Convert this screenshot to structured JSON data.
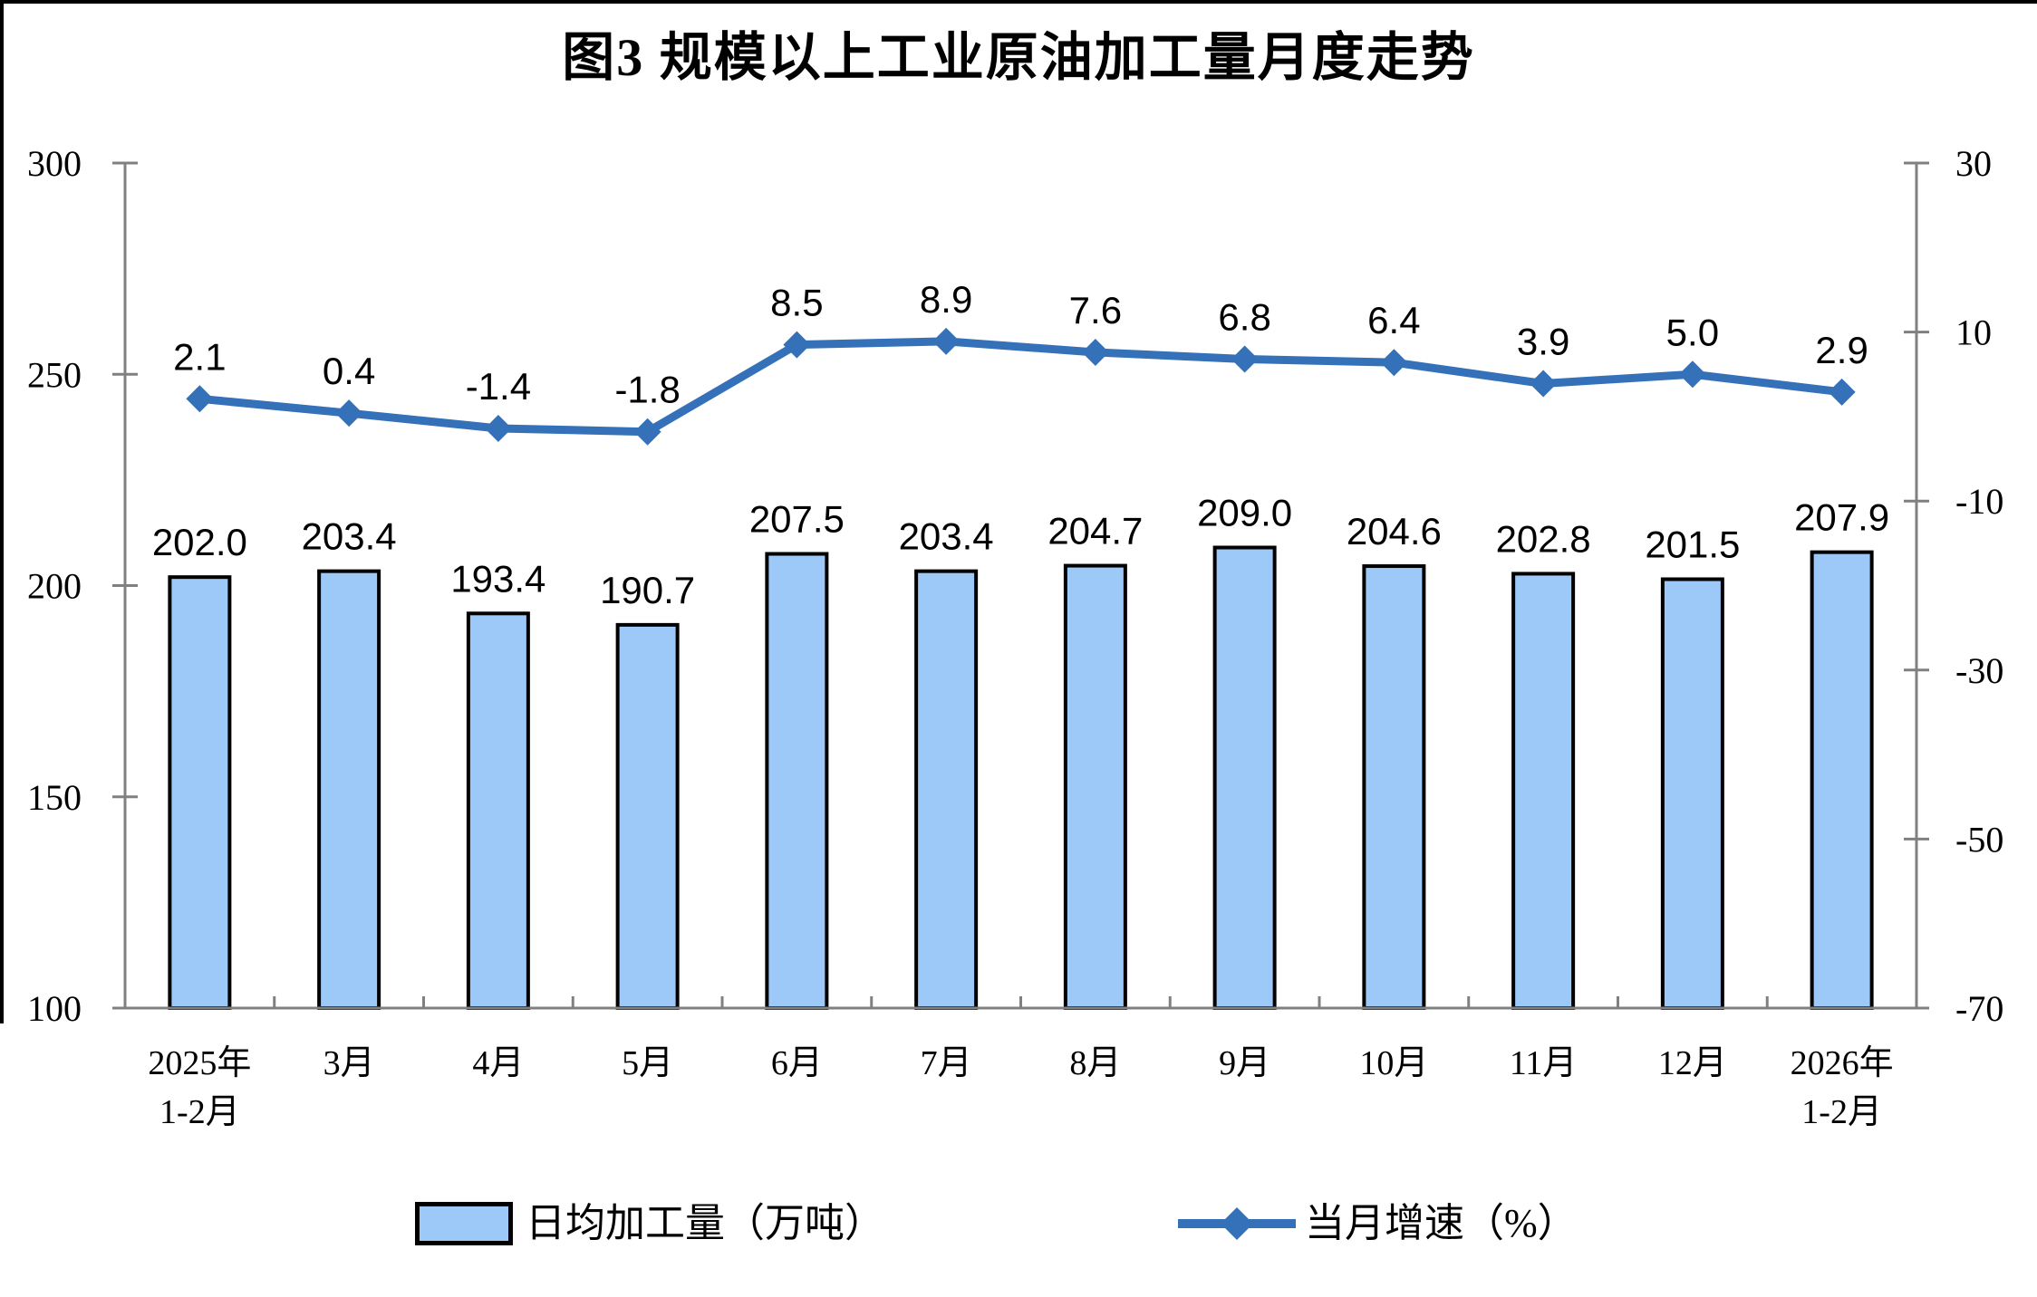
{
  "chart_data": {
    "type": "bar+line",
    "title": "图3 规模以上工业原油加工量月度走势",
    "categories": [
      "2025年\n1-2月",
      "3月",
      "4月",
      "5月",
      "6月",
      "7月",
      "8月",
      "9月",
      "10月",
      "11月",
      "12月",
      "2026年\n1-2月"
    ],
    "series": [
      {
        "name": "日均加工量（万吨）",
        "type": "bar",
        "axis": "left",
        "values": [
          202.0,
          203.4,
          193.4,
          190.7,
          207.5,
          203.4,
          204.7,
          209.0,
          204.6,
          202.8,
          201.5,
          207.9
        ],
        "decimals": 1,
        "fill": "#9DC9F8",
        "stroke": "#000000"
      },
      {
        "name": "当月增速（%）",
        "type": "line",
        "axis": "right",
        "values": [
          2.1,
          0.4,
          -1.4,
          -1.8,
          8.5,
          8.9,
          7.6,
          6.8,
          6.4,
          3.9,
          5.0,
          2.9
        ],
        "decimals": 1,
        "color": "#3471B8"
      }
    ],
    "left_axis": {
      "min": 100,
      "max": 300,
      "ticks": [
        300,
        250,
        200,
        150,
        100
      ]
    },
    "right_axis": {
      "min": -70,
      "max": 30,
      "ticks": [
        30,
        10,
        -10,
        -30,
        -50,
        -70
      ]
    },
    "axis_color": "#808080",
    "label_color": "#000000",
    "grid": false,
    "legend_position": "bottom"
  }
}
